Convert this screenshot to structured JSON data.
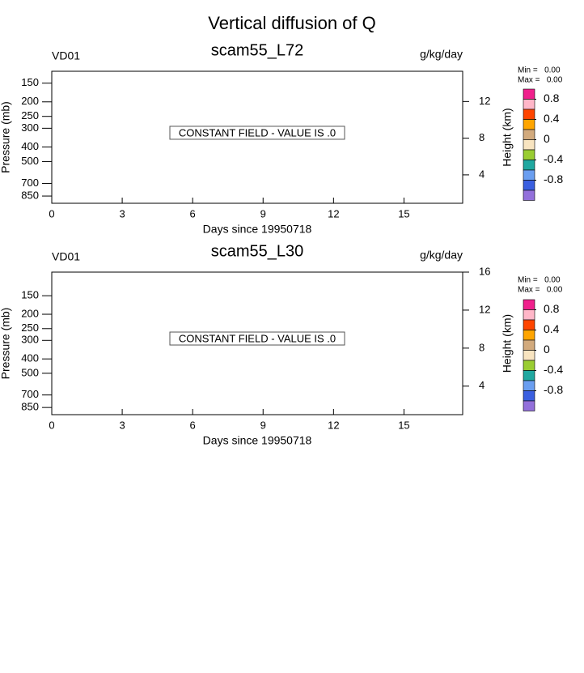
{
  "title": "Vertical diffusion of Q",
  "chart_data": [
    {
      "type": "contour",
      "title": "scam55_L72",
      "left_label": "VD01",
      "right_label": "g/kg/day",
      "annotation": "CONSTANT FIELD - VALUE IS .0",
      "xlabel": "Days since 19950718",
      "ylabel": "Pressure (mb)",
      "y2label": "Height (km)",
      "xlim": [
        0,
        17.5
      ],
      "xticks": [
        0,
        3,
        6,
        9,
        12,
        15
      ],
      "ylim": [
        950,
        125
      ],
      "ylog": true,
      "yticks": [
        150,
        200,
        250,
        300,
        400,
        500,
        700,
        850
      ],
      "y2lim": [
        0.9,
        15.3
      ],
      "y2ticks": [
        4,
        8,
        12
      ],
      "colorbar": {
        "min_label": "Min =   0.00",
        "max_label": "Max =   0.00",
        "levels": [
          0.8,
          0.6,
          0.4,
          0.2,
          0,
          -0.2,
          -0.4,
          -0.6,
          -0.8,
          -1.0
        ],
        "ticks": [
          0.8,
          0.4,
          0,
          -0.4,
          -0.8
        ],
        "colors": [
          "#f0208c",
          "#ffb6c8",
          "#ff4500",
          "#ffa500",
          "#d2aa7d",
          "#f8e4c0",
          "#9acd32",
          "#20a8a0",
          "#6a9ef0",
          "#3a5fe0",
          "#9370db"
        ]
      }
    },
    {
      "type": "contour",
      "title": "scam55_L30",
      "left_label": "VD01",
      "right_label": "g/kg/day",
      "annotation": "CONSTANT FIELD - VALUE IS .0",
      "xlabel": "Days since 19950718",
      "ylabel": "Pressure (mb)",
      "y2label": "Height (km)",
      "xlim": [
        0,
        17.5
      ],
      "xticks": [
        0,
        3,
        6,
        9,
        12,
        15
      ],
      "ylim": [
        950,
        104
      ],
      "ylog": true,
      "yticks": [
        150,
        200,
        250,
        300,
        400,
        500,
        700,
        850
      ],
      "y2lim": [
        1,
        16
      ],
      "y2ticks": [
        4,
        8,
        12,
        16
      ],
      "colorbar": {
        "min_label": "Min =   0.00",
        "max_label": "Max =   0.00",
        "levels": [
          0.8,
          0.6,
          0.4,
          0.2,
          0,
          -0.2,
          -0.4,
          -0.6,
          -0.8,
          -1.0
        ],
        "ticks": [
          0.8,
          0.4,
          0,
          -0.4,
          -0.8
        ],
        "colors": [
          "#f0208c",
          "#ffb6c8",
          "#ff4500",
          "#ffa500",
          "#d2aa7d",
          "#f8e4c0",
          "#9acd32",
          "#20a8a0",
          "#6a9ef0",
          "#3a5fe0",
          "#9370db"
        ]
      }
    }
  ]
}
